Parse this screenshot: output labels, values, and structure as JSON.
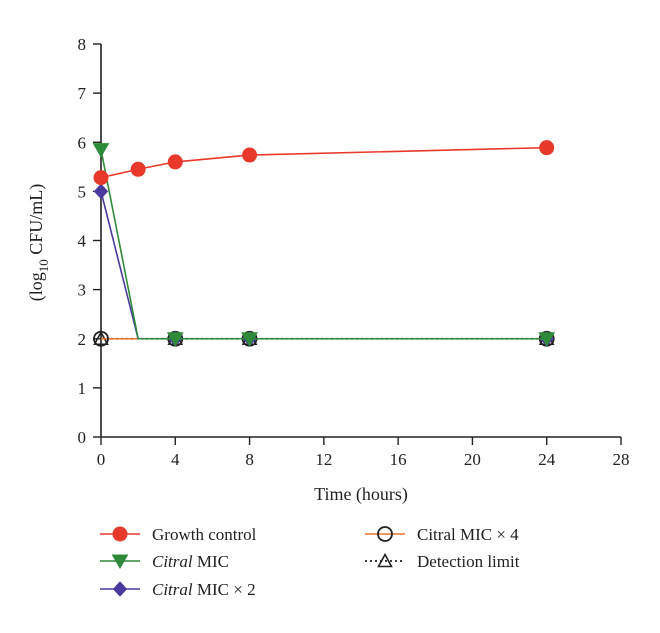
{
  "chart_data": {
    "type": "line",
    "xlabel": "Time (hours)",
    "ylabel": {
      "prefix": "(log",
      "sub": "10",
      "suffix": " CFU/mL)"
    },
    "xlim": [
      0,
      28
    ],
    "ylim": [
      0,
      8
    ],
    "xticks": [
      0,
      4,
      8,
      12,
      16,
      20,
      24,
      28
    ],
    "yticks": [
      0,
      1,
      2,
      3,
      4,
      5,
      6,
      7,
      8
    ],
    "grid": false,
    "legend_position": "bottom",
    "series": [
      {
        "name": "Growth control",
        "color": "#e8392b",
        "marker": "circle-filled",
        "line": "solid",
        "x": [
          0,
          2,
          4,
          8,
          24
        ],
        "y": [
          5.28,
          5.45,
          5.6,
          5.74,
          5.89
        ]
      },
      {
        "name": "Citral MIC",
        "name_italic": "Citral",
        "name_rest": " MIC",
        "color": "#2e8b3a",
        "marker": "triangle-down-filled",
        "line": "solid",
        "x": [
          0,
          2,
          4,
          8,
          24
        ],
        "y": [
          5.85,
          2,
          2,
          2,
          2
        ],
        "markers_at": [
          0,
          4,
          8,
          24
        ]
      },
      {
        "name": "Citral MIC × 2",
        "name_italic": "Citral",
        "name_rest": " MIC × 2",
        "color": "#4b3a9e",
        "marker": "diamond-filled",
        "line": "solid",
        "x": [
          0,
          2,
          4,
          8,
          24
        ],
        "y": [
          5.0,
          2,
          2,
          2,
          2
        ],
        "markers_at": [
          0,
          4,
          8,
          24
        ]
      },
      {
        "name": "Citral MIC × 4",
        "color": "#e8722b",
        "marker": "circle-open",
        "line": "solid",
        "x": [
          0,
          4,
          8,
          24
        ],
        "y": [
          2,
          2,
          2,
          2
        ]
      },
      {
        "name": "Detection limit",
        "color": "#222222",
        "marker": "triangle-up-open",
        "line": "dotted",
        "x": [
          0,
          4,
          8,
          24
        ],
        "y": [
          2,
          2,
          2,
          2
        ]
      }
    ]
  }
}
